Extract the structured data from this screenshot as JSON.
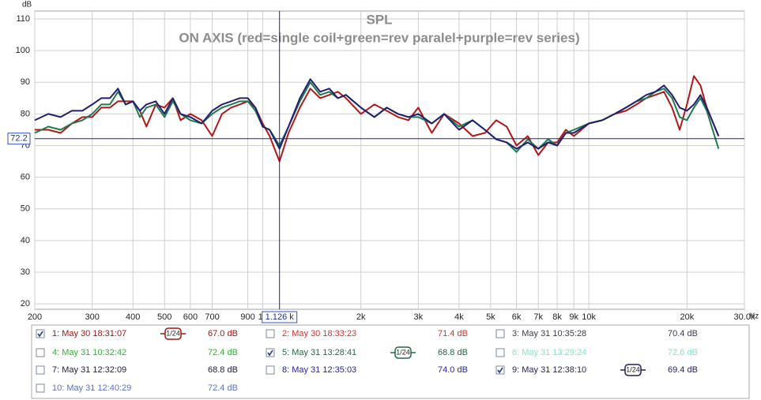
{
  "chart_data": {
    "type": "line",
    "title": "SPL",
    "subtitle": "ON AXIS (red=single coil+green=rev paralel+purple=rev series)",
    "y_label": "dB",
    "x_label": "Hz",
    "log_x": true,
    "grid": true,
    "xlim": [
      200,
      30000
    ],
    "ylim": [
      18.3,
      112.5
    ],
    "xticks": [
      200,
      300,
      400,
      500,
      600,
      700,
      900,
      {
        "value": 1000,
        "label": "1k"
      },
      {
        "value": 2000,
        "label": "2k"
      },
      {
        "value": 3000,
        "label": "3k"
      },
      {
        "value": 4000,
        "label": "4k"
      },
      {
        "value": 5000,
        "label": "5k"
      },
      {
        "value": 6000,
        "label": "6k"
      },
      {
        "value": 7000,
        "label": "7k"
      },
      {
        "value": 8000,
        "label": "8k"
      },
      {
        "value": 9000,
        "label": "9k"
      },
      {
        "value": 10000,
        "label": "10k"
      },
      {
        "value": 20000,
        "label": "20k"
      },
      {
        "value": 30000,
        "label": "30.0k"
      }
    ],
    "yticks": [
      20,
      30,
      40,
      50,
      60,
      70,
      80,
      90,
      100,
      110
    ],
    "cursor": {
      "x": 1126,
      "x_label": "1.126 k",
      "y": 72.2
    },
    "x": [
      200,
      220,
      240,
      260,
      280,
      300,
      320,
      340,
      360,
      380,
      400,
      420,
      440,
      470,
      500,
      530,
      560,
      600,
      650,
      700,
      750,
      800,
      850,
      900,
      950,
      1000,
      1050,
      1126,
      1200,
      1300,
      1400,
      1500,
      1600,
      1700,
      1800,
      2000,
      2200,
      2400,
      2600,
      2800,
      3000,
      3300,
      3600,
      4000,
      4400,
      4800,
      5200,
      5600,
      6000,
      6500,
      7000,
      7500,
      8000,
      8500,
      9000,
      10000,
      11000,
      12000,
      13000,
      14000,
      15000,
      16000,
      17000,
      18000,
      19000,
      20000,
      21000,
      22000,
      23000,
      25000
    ],
    "series": [
      {
        "color": "#b01818",
        "values": [
          75,
          75,
          74,
          77,
          79,
          79,
          82,
          82,
          84,
          84,
          84,
          81,
          76,
          83,
          82,
          85,
          78,
          80,
          78,
          73,
          80,
          82,
          83,
          84,
          82,
          77,
          73,
          65,
          74,
          82,
          88,
          85,
          86,
          87,
          85,
          80,
          83,
          81,
          79,
          78,
          82,
          74,
          80,
          77,
          73,
          74,
          78,
          76,
          70,
          73,
          67,
          71,
          71,
          75,
          73,
          77,
          78,
          80,
          81,
          83,
          85,
          86,
          87,
          82,
          75,
          83,
          92,
          89,
          82,
          73
        ]
      },
      {
        "color": "#1f7a50",
        "values": [
          74,
          76,
          75,
          77,
          78,
          80,
          83,
          83,
          87,
          83,
          84,
          79,
          82,
          83,
          79,
          84,
          80,
          78,
          77,
          80,
          82,
          83,
          84,
          84,
          81,
          76,
          75,
          70,
          76,
          84,
          90,
          86,
          87,
          85,
          86,
          82,
          79,
          82,
          80,
          79,
          79,
          77,
          80,
          76,
          78,
          75,
          72,
          71,
          68,
          72,
          69,
          72,
          70,
          74,
          75,
          77,
          78,
          80,
          82,
          84,
          85,
          87,
          88,
          85,
          79,
          78,
          82,
          85,
          81,
          69
        ]
      },
      {
        "color": "#22206e",
        "values": [
          78,
          80,
          79,
          81,
          81,
          83,
          85,
          85,
          88,
          83,
          84,
          81,
          83,
          84,
          80,
          85,
          80,
          79,
          77,
          81,
          83,
          84,
          85,
          85,
          82,
          76,
          75,
          69,
          76,
          85,
          91,
          87,
          88,
          85,
          86,
          82,
          79,
          82,
          80,
          79,
          80,
          77,
          80,
          75,
          78,
          75,
          72,
          71,
          69,
          71,
          69,
          71,
          70,
          74,
          74,
          77,
          78,
          80,
          82,
          84,
          86,
          87,
          89,
          86,
          82,
          81,
          83,
          86,
          82,
          73
        ]
      }
    ]
  },
  "measurements": [
    {
      "label": "1: May 30 18:31:07",
      "value": "67.0 dB",
      "color": "#a01414",
      "checked": true,
      "smoothing": "1/24"
    },
    {
      "label": "2: May 30 18:33:23",
      "value": "71.4 dB",
      "color": "#d03030",
      "checked": false
    },
    {
      "label": "3: May 31 10:35:28",
      "value": "70.4 dB",
      "color": "#3a3a4a",
      "checked": false
    },
    {
      "label": "4: May 31 10:32:42",
      "value": "72.4 dB",
      "color": "#30b030",
      "checked": false
    },
    {
      "label": "5: May 31 13:28:41",
      "value": "68.8 dB",
      "color": "#206844",
      "checked": true,
      "smoothing": "1/24"
    },
    {
      "label": "6: May 31 13:29:24",
      "value": "72.6 dB",
      "color": "#80e4cc",
      "checked": false
    },
    {
      "label": "7: May 31 12:32:09",
      "value": "68.8 dB",
      "color": "#202040",
      "checked": false
    },
    {
      "label": "8: May 31 12:35:03",
      "value": "74.0 dB",
      "color": "#2424a0",
      "checked": false
    },
    {
      "label": "9: May 31 12:38:10",
      "value": "69.4 dB",
      "color": "#2a1a5a",
      "checked": true,
      "smoothing": "1/24"
    },
    {
      "label": "10: May 31 12:40:29",
      "value": "72.4 dB",
      "color": "#6070c0",
      "checked": false
    }
  ]
}
